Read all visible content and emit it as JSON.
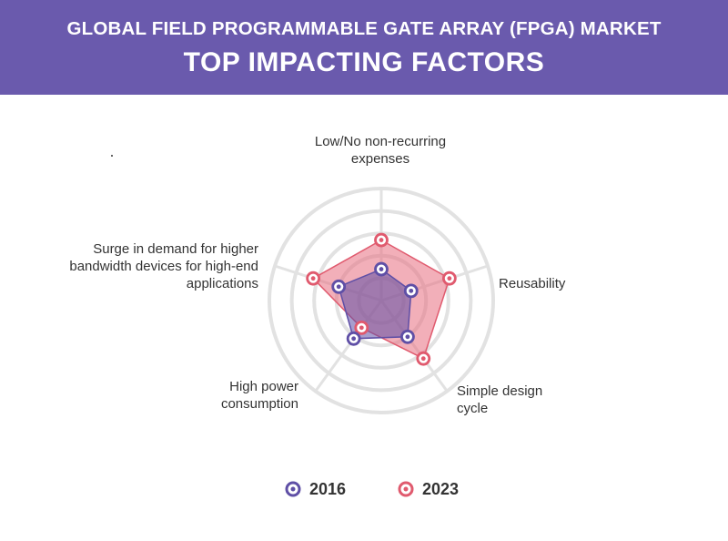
{
  "header": {
    "title": "GLOBAL FIELD PROGRAMMABLE GATE ARRAY (FPGA) MARKET",
    "subtitle": "TOP IMPACTING FACTORS"
  },
  "chart_data": {
    "type": "radar",
    "categories": [
      "Low/No non-recurring expenses",
      "Reusability",
      "Simple design cycle",
      "High power consumption",
      "Surge in demand for higher bandwidth devices for high-end applications"
    ],
    "rlim": [
      0,
      5
    ],
    "grid": true,
    "legend_position": "bottom",
    "series": [
      {
        "name": "2016",
        "values": [
          1.4,
          1.4,
          2.0,
          2.1,
          2.0
        ],
        "color": "#5f4fa6"
      },
      {
        "name": "2023",
        "values": [
          2.7,
          3.2,
          3.2,
          1.5,
          3.2
        ],
        "color": "#e05a6e"
      }
    ]
  }
}
